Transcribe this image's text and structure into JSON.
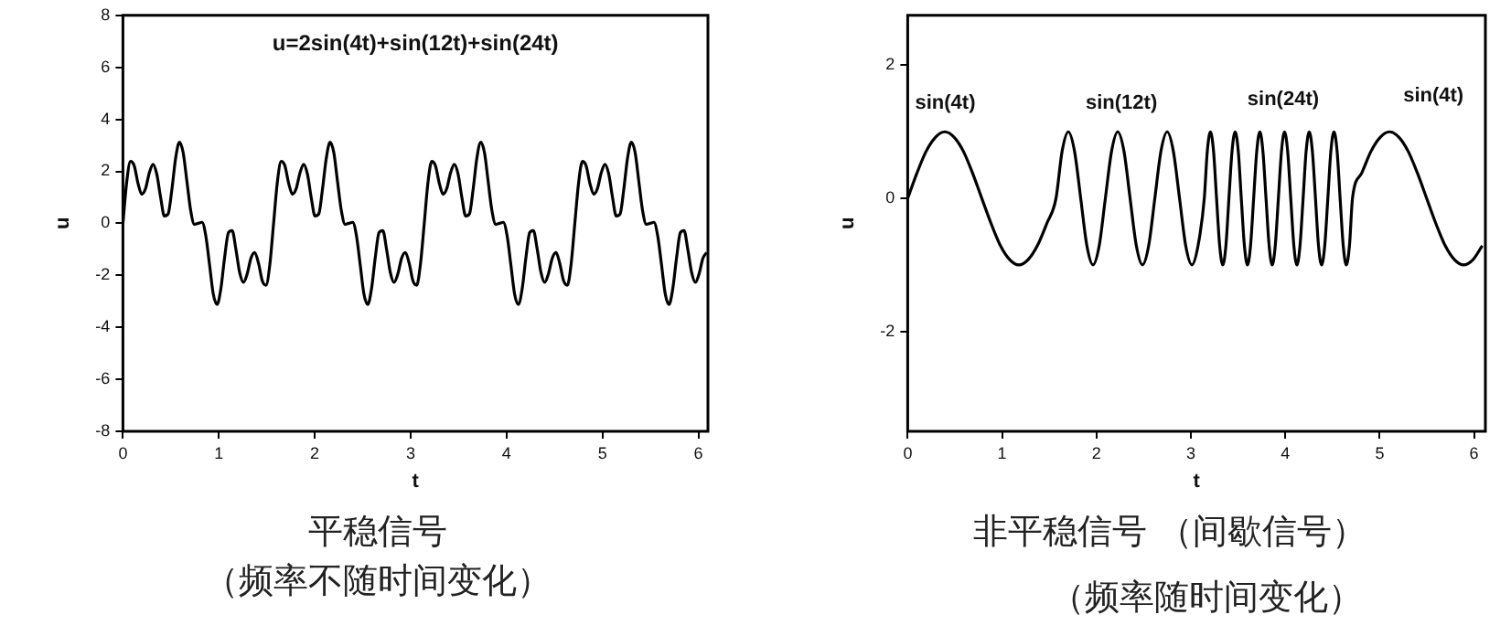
{
  "chart_data": [
    {
      "type": "line",
      "title": "平稳信号",
      "subtitle": "（频率不随时间变化）",
      "xlabel": "t",
      "ylabel": "u",
      "annotations": [
        "u=2sin(4t)+sin(12t)+sin(24t)"
      ],
      "xlim": [
        0,
        6.1
      ],
      "xticks": [
        0,
        1,
        2,
        3,
        4,
        5,
        6
      ],
      "ylim": [
        -8,
        8
      ],
      "yticks": [
        -8,
        -6,
        -4,
        -2,
        0,
        2,
        4,
        6,
        8
      ],
      "grid": false,
      "legend": false,
      "marker": "none",
      "line_style": "solid",
      "series": [
        {
          "color": "#000000",
          "x": [
            0,
            0.039,
            0.079,
            0.118,
            0.157,
            0.196,
            0.236,
            0.275,
            0.314,
            0.353,
            0.393,
            0.432,
            0.471,
            0.511,
            0.55,
            0.589,
            0.628,
            0.668,
            0.707,
            0.746,
            0.785,
            0.825,
            0.864,
            0.903,
            0.942,
            0.982,
            1.021,
            1.06,
            1.1,
            1.139,
            1.178,
            1.217,
            1.257,
            1.296,
            1.335,
            1.374,
            1.414,
            1.453,
            1.492,
            1.532,
            1.571,
            1.61,
            1.65,
            1.689,
            1.728,
            1.767,
            1.807,
            1.846,
            1.885,
            1.924,
            1.963,
            2.003,
            2.042,
            2.081,
            2.121,
            2.16,
            2.199,
            2.238,
            2.278,
            2.317,
            2.356,
            2.396,
            2.435,
            2.474,
            2.513,
            2.553,
            2.592,
            2.631,
            2.67,
            2.71,
            2.749,
            2.788,
            2.827,
            2.867,
            2.906,
            2.945,
            2.985,
            3.024,
            3.063,
            3.102,
            3.142,
            3.181,
            3.22,
            3.259,
            3.299,
            3.338,
            3.377,
            3.416,
            3.456,
            3.495,
            3.534,
            3.574,
            3.613,
            3.652,
            3.691,
            3.731,
            3.77,
            3.809,
            3.848,
            3.888,
            3.927,
            3.966,
            4.006,
            4.045,
            4.084,
            4.123,
            4.163,
            4.202,
            4.241,
            4.28,
            4.32,
            4.359,
            4.398,
            4.437,
            4.477,
            4.516,
            4.555,
            4.595,
            4.634,
            4.673,
            4.712,
            4.752,
            4.791,
            4.83,
            4.869,
            4.909,
            4.948,
            4.987,
            5.027,
            5.066,
            5.105,
            5.144,
            5.184,
            5.223,
            5.262,
            5.301,
            5.341,
            5.38,
            5.419,
            5.458,
            5.498,
            5.537,
            5.576,
            5.616,
            5.655,
            5.694,
            5.733,
            5.773,
            5.812,
            5.851,
            5.89,
            5.93,
            5.969,
            6.008,
            6.048,
            6.087
          ],
          "values": [
            0,
            1.58,
            2.38,
            2.21,
            1.54,
            1.12,
            1.34,
            1.94,
            2.27,
            1.89,
            1,
            0.28,
            0.36,
            1.32,
            2.52,
            3.12,
            2.72,
            1.59,
            0.48,
            -0.04,
            0,
            0.04,
            -0.48,
            -1.59,
            -2.72,
            -3.12,
            -2.52,
            -1.32,
            -0.36,
            -0.28,
            -1,
            -1.89,
            -2.27,
            -1.94,
            -1.34,
            -1.12,
            -1.54,
            -2.21,
            -2.38,
            -1.58,
            0,
            1.58,
            2.38,
            2.21,
            1.54,
            1.12,
            1.34,
            1.94,
            2.27,
            1.89,
            1,
            0.28,
            0.36,
            1.32,
            2.52,
            3.12,
            2.72,
            1.59,
            0.48,
            -0.04,
            0,
            0.04,
            -0.48,
            -1.59,
            -2.72,
            -3.12,
            -2.52,
            -1.32,
            -0.36,
            -0.28,
            -1,
            -1.89,
            -2.27,
            -1.94,
            -1.34,
            -1.12,
            -1.54,
            -2.21,
            -2.38,
            -1.58,
            0,
            1.58,
            2.38,
            2.21,
            1.54,
            1.12,
            1.34,
            1.94,
            2.27,
            1.89,
            1,
            0.28,
            0.36,
            1.32,
            2.52,
            3.12,
            2.72,
            1.59,
            0.48,
            -0.04,
            0,
            0.04,
            -0.48,
            -1.59,
            -2.72,
            -3.12,
            -2.52,
            -1.32,
            -0.36,
            -0.28,
            -1,
            -1.89,
            -2.27,
            -1.94,
            -1.34,
            -1.12,
            -1.54,
            -2.21,
            -2.38,
            -1.58,
            0,
            1.58,
            2.38,
            2.21,
            1.54,
            1.12,
            1.34,
            1.94,
            2.27,
            1.89,
            1,
            0.28,
            0.36,
            1.32,
            2.52,
            3.12,
            2.72,
            1.59,
            0.48,
            -0.04,
            0,
            0.04,
            -0.48,
            -1.59,
            -2.72,
            -3.12,
            -2.52,
            -1.32,
            -0.36,
            -0.28,
            -1,
            -1.89,
            -2.27,
            -1.94,
            -1.34,
            -1.12
          ]
        }
      ]
    },
    {
      "type": "line",
      "title": "非平稳信号 （间歇信号）",
      "subtitle": "（频率随时间变化）",
      "xlabel": "t",
      "ylabel": "u",
      "annotations": [
        "sin(4t)",
        "sin(12t)",
        "sin(24t)",
        "sin(4t)"
      ],
      "xlim": [
        0,
        6.12
      ],
      "xticks": [
        0,
        1,
        2,
        3,
        4,
        5,
        6
      ],
      "ylim": [
        -3.5,
        2.75
      ],
      "yticks": [
        -2,
        0,
        2
      ],
      "grid": false,
      "legend": false,
      "marker": "none",
      "line_style": "solid",
      "series": [
        {
          "color": "#000000",
          "x": [
            0,
            0.098,
            0.196,
            0.295,
            0.393,
            0.491,
            0.589,
            0.687,
            0.785,
            0.884,
            0.982,
            1.08,
            1.178,
            1.276,
            1.374,
            1.473,
            1.571,
            1.636,
            1.702,
            1.767,
            1.833,
            1.898,
            1.963,
            2.029,
            2.094,
            2.16,
            2.225,
            2.291,
            2.356,
            2.422,
            2.487,
            2.553,
            2.618,
            2.683,
            2.749,
            2.814,
            2.88,
            2.945,
            3.011,
            3.076,
            3.142,
            3.174,
            3.207,
            3.24,
            3.272,
            3.305,
            3.338,
            3.371,
            3.403,
            3.436,
            3.469,
            3.502,
            3.534,
            3.567,
            3.6,
            3.632,
            3.665,
            3.698,
            3.731,
            3.763,
            3.796,
            3.829,
            3.862,
            3.894,
            3.927,
            3.96,
            3.992,
            4.025,
            4.058,
            4.091,
            4.123,
            4.156,
            4.189,
            4.221,
            4.254,
            4.287,
            4.32,
            4.352,
            4.385,
            4.418,
            4.451,
            4.483,
            4.516,
            4.549,
            4.581,
            4.614,
            4.647,
            4.68,
            4.712,
            4.81,
            4.909,
            5.007,
            5.105,
            5.203,
            5.301,
            5.4,
            5.498,
            5.596,
            5.694,
            5.792,
            5.89,
            5.989,
            6.087
          ],
          "values": [
            0,
            0.38,
            0.71,
            0.92,
            1,
            0.92,
            0.71,
            0.38,
            0,
            -0.38,
            -0.71,
            -0.92,
            -1,
            -0.92,
            -0.71,
            -0.38,
            0,
            0.71,
            1,
            0.71,
            0,
            -0.71,
            -1,
            -0.71,
            0,
            0.71,
            1,
            0.71,
            0,
            -0.71,
            -1,
            -0.71,
            0,
            0.71,
            1,
            0.71,
            0,
            -0.71,
            -1,
            -0.71,
            0,
            0.71,
            1,
            0.71,
            0,
            -0.71,
            -1,
            -0.71,
            0,
            0.71,
            1,
            0.71,
            0,
            -0.71,
            -1,
            -0.71,
            0,
            0.71,
            1,
            0.71,
            0,
            -0.71,
            -1,
            -0.71,
            0,
            0.71,
            1,
            0.71,
            0,
            -0.71,
            -1,
            -0.71,
            0,
            0.71,
            1,
            0.71,
            0,
            -0.71,
            -1,
            -0.71,
            0,
            0.71,
            1,
            0.71,
            0,
            -0.71,
            -1,
            -0.71,
            0,
            0.38,
            0.71,
            0.92,
            1,
            0.92,
            0.71,
            0.38,
            0,
            -0.38,
            -0.71,
            -0.92,
            -1,
            -0.92,
            -0.71
          ]
        }
      ]
    }
  ]
}
